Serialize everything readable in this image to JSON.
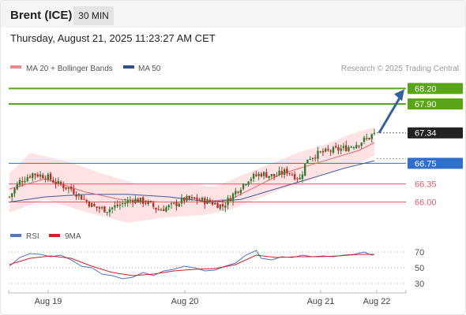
{
  "header": {
    "title": "Brent (ICE)",
    "timeframe": "30 MIN",
    "datetime": "Thursday, August 21, 2025 11:23:27 AM CET"
  },
  "legend": {
    "ma20": "MA 20 + Bollinger Bands",
    "ma50": "MA 50",
    "credit": "Research © 2025 Trading Central",
    "rsi": "RSI",
    "rsi_ma": "9MA"
  },
  "colors": {
    "candle_up": "#2e7d32",
    "candle_down": "#c62828",
    "ma20": "#e46a6a",
    "bands_fill": "#fde0e0",
    "ma50": "#3b5b9a",
    "resistance": "#5aa516",
    "support": "#2f6fcc",
    "level_red": "#e45a6a",
    "arrow": "#3560a3",
    "rsi": "#5573c7",
    "rsi_ma": "#d81f26"
  },
  "chart_data": [
    {
      "type": "candlestick",
      "title": "Brent (ICE)",
      "timeframe": "30 MIN",
      "x_labels": [
        "Aug 19",
        "Aug 20",
        "Aug 21",
        "Aug 22"
      ],
      "ylim": [
        65.55,
        68.45
      ],
      "current_price": 67.34,
      "levels": [
        {
          "value": 68.2,
          "label": "68.20",
          "kind": "resistance"
        },
        {
          "value": 67.9,
          "label": "67.90",
          "kind": "resistance"
        },
        {
          "value": 66.75,
          "label": "66.75",
          "kind": "pivot"
        },
        {
          "value": 66.35,
          "label": "66.35",
          "kind": "support"
        },
        {
          "value": 66.0,
          "label": "66.00",
          "kind": "support"
        }
      ],
      "close_path": [
        [
          0,
          66.1
        ],
        [
          4,
          66.4
        ],
        [
          9,
          66.55
        ],
        [
          14,
          66.5
        ],
        [
          19,
          66.35
        ],
        [
          24,
          66.25
        ],
        [
          29,
          66.05
        ],
        [
          33,
          65.9
        ],
        [
          38,
          65.85
        ],
        [
          43,
          65.95
        ],
        [
          48,
          66.05
        ],
        [
          53,
          66.0
        ],
        [
          58,
          65.85
        ],
        [
          63,
          65.92
        ],
        [
          68,
          66.05
        ],
        [
          73,
          66.05
        ],
        [
          78,
          66.0
        ],
        [
          83,
          65.92
        ],
        [
          88,
          66.2
        ],
        [
          93,
          66.45
        ],
        [
          98,
          66.55
        ],
        [
          103,
          66.5
        ],
        [
          108,
          66.6
        ],
        [
          113,
          66.45
        ],
        [
          116,
          66.85
        ],
        [
          121,
          66.95
        ],
        [
          126,
          67.0
        ],
        [
          131,
          67.05
        ],
        [
          136,
          67.15
        ],
        [
          140,
          67.25
        ],
        [
          142,
          67.34
        ]
      ],
      "series": [
        {
          "name": "MA 20",
          "values": [
            [
              0,
              66.25
            ],
            [
              14,
              66.45
            ],
            [
              29,
              66.2
            ],
            [
              43,
              66.05
            ],
            [
              58,
              66.0
            ],
            [
              73,
              66.0
            ],
            [
              86,
              66.05
            ],
            [
              96,
              66.3
            ],
            [
              106,
              66.55
            ],
            [
              116,
              66.7
            ],
            [
              126,
              66.85
            ],
            [
              136,
              67.0
            ],
            [
              142,
              67.15
            ]
          ]
        },
        {
          "name": "Bollinger Bands",
          "upper": [
            [
              0,
              66.55
            ],
            [
              8,
              66.95
            ],
            [
              22,
              66.8
            ],
            [
              36,
              66.55
            ],
            [
              50,
              66.35
            ],
            [
              66,
              66.35
            ],
            [
              80,
              66.3
            ],
            [
              92,
              66.55
            ],
            [
              102,
              66.75
            ],
            [
              112,
              66.95
            ],
            [
              122,
              67.1
            ],
            [
              132,
              67.3
            ],
            [
              142,
              67.45
            ]
          ],
          "lower": [
            [
              0,
              65.8
            ],
            [
              14,
              66.05
            ],
            [
              30,
              65.8
            ],
            [
              46,
              65.6
            ],
            [
              60,
              65.7
            ],
            [
              76,
              65.75
            ],
            [
              86,
              65.85
            ],
            [
              96,
              66.05
            ],
            [
              106,
              66.25
            ],
            [
              116,
              66.4
            ],
            [
              126,
              66.6
            ],
            [
              136,
              66.75
            ],
            [
              142,
              66.9
            ]
          ]
        },
        {
          "name": "MA 50",
          "values": [
            [
              0,
              66.0
            ],
            [
              14,
              66.1
            ],
            [
              30,
              66.15
            ],
            [
              46,
              66.15
            ],
            [
              62,
              66.1
            ],
            [
              78,
              66.0
            ],
            [
              90,
              66.05
            ],
            [
              100,
              66.2
            ],
            [
              110,
              66.35
            ],
            [
              120,
              66.5
            ],
            [
              130,
              66.65
            ],
            [
              142,
              66.8
            ]
          ]
        }
      ],
      "projection": {
        "from": 67.34,
        "to": 68.2,
        "direction": "up"
      }
    },
    {
      "type": "line",
      "title": "RSI",
      "yticks": [
        70,
        50,
        30
      ],
      "ylim": [
        24,
        76
      ],
      "series": [
        {
          "name": "RSI",
          "values": [
            [
              0,
              52
            ],
            [
              4,
              63
            ],
            [
              8,
              68
            ],
            [
              12,
              67
            ],
            [
              16,
              64
            ],
            [
              20,
              66
            ],
            [
              24,
              60
            ],
            [
              28,
              52
            ],
            [
              32,
              50
            ],
            [
              36,
              42
            ],
            [
              40,
              40
            ],
            [
              44,
              36
            ],
            [
              48,
              38
            ],
            [
              52,
              44
            ],
            [
              56,
              40
            ],
            [
              60,
              46
            ],
            [
              64,
              48
            ],
            [
              68,
              52
            ],
            [
              72,
              50
            ],
            [
              76,
              46
            ],
            [
              80,
              47
            ],
            [
              84,
              52
            ],
            [
              88,
              56
            ],
            [
              92,
              66
            ],
            [
              96,
              72
            ],
            [
              98,
              62
            ],
            [
              102,
              60
            ],
            [
              106,
              64
            ],
            [
              110,
              63
            ],
            [
              114,
              66
            ],
            [
              118,
              64
            ],
            [
              122,
              65
            ],
            [
              126,
              64
            ],
            [
              130,
              66
            ],
            [
              134,
              67
            ],
            [
              138,
              70
            ],
            [
              141,
              66
            ],
            [
              142,
              67
            ]
          ]
        },
        {
          "name": "9MA",
          "values": [
            [
              0,
              54
            ],
            [
              8,
              62
            ],
            [
              16,
              65
            ],
            [
              24,
              62
            ],
            [
              32,
              52
            ],
            [
              40,
              44
            ],
            [
              48,
              40
            ],
            [
              56,
              42
            ],
            [
              64,
              46
            ],
            [
              72,
              48
            ],
            [
              80,
              49
            ],
            [
              88,
              54
            ],
            [
              96,
              66
            ],
            [
              104,
              63
            ],
            [
              112,
              64
            ],
            [
              120,
              64
            ],
            [
              128,
              65
            ],
            [
              136,
              67
            ],
            [
              142,
              67
            ]
          ]
        }
      ]
    }
  ]
}
